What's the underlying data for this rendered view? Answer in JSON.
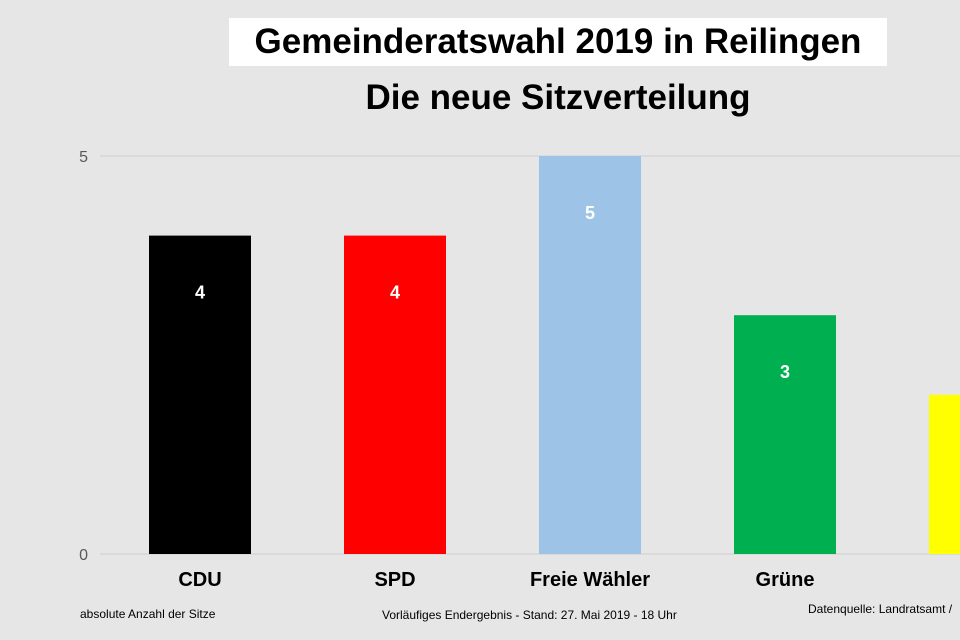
{
  "chart_data": {
    "type": "bar",
    "title": "Gemeinderatswahl 2019 in Reilingen",
    "subtitle": "Die neue Sitzverteilung",
    "categories": [
      "CDU",
      "SPD",
      "Freie Wähler",
      "Grüne",
      ""
    ],
    "values": [
      4,
      4,
      5,
      3,
      2
    ],
    "value_labels": [
      "4",
      "4",
      "5",
      "3",
      ""
    ],
    "colors": [
      "#000000",
      "#ff0000",
      "#9dc3e6",
      "#00b050",
      "#ffff00"
    ],
    "ylim": [
      0,
      5
    ],
    "yticks": [
      "0",
      "5"
    ],
    "xlabel": "",
    "ylabel": "absolute Anzahl der Sitze"
  },
  "footer": {
    "left": "absolute Anzahl der Sitze",
    "center": "Vorläufiges Endergebnis - Stand: 27. Mai 2019  - 18 Uhr",
    "right": "Datenquelle: Landratsamt /"
  }
}
